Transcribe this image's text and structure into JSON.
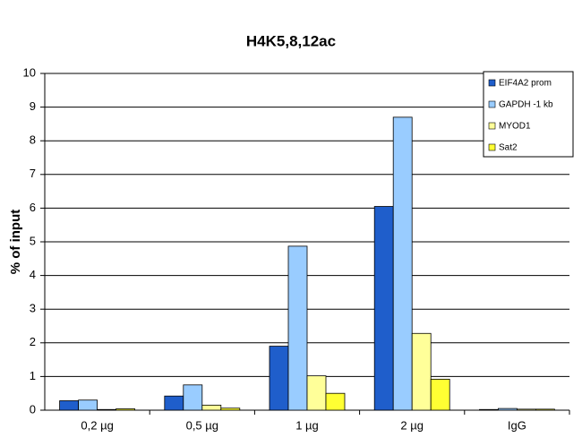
{
  "chart_data": {
    "type": "bar",
    "title": "H4K5,8,12ac",
    "y_label": "% of input",
    "categories": [
      "0,2 µg",
      "0,5 µg",
      "1 µg",
      "2 µg",
      "IgG"
    ],
    "series": [
      {
        "name": "EIF4A2 prom",
        "color": "#1f5ecb",
        "values": [
          0.28,
          0.42,
          1.9,
          6.05,
          0.02
        ]
      },
      {
        "name": "GAPDH -1 kb",
        "color": "#99ccff",
        "values": [
          0.3,
          0.75,
          4.87,
          8.7,
          0.05
        ]
      },
      {
        "name": "MYOD1",
        "color": "#ffff99",
        "values": [
          0.02,
          0.15,
          1.02,
          2.28,
          0.03
        ]
      },
      {
        "name": "Sat2",
        "color": "#ffff33",
        "values": [
          0.04,
          0.06,
          0.5,
          0.92,
          0.03
        ]
      }
    ],
    "ylim": [
      0,
      10
    ],
    "yticks": [
      0,
      1,
      2,
      3,
      4,
      5,
      6,
      7,
      8,
      9,
      10
    ],
    "grid": true,
    "legend": "top-right"
  }
}
